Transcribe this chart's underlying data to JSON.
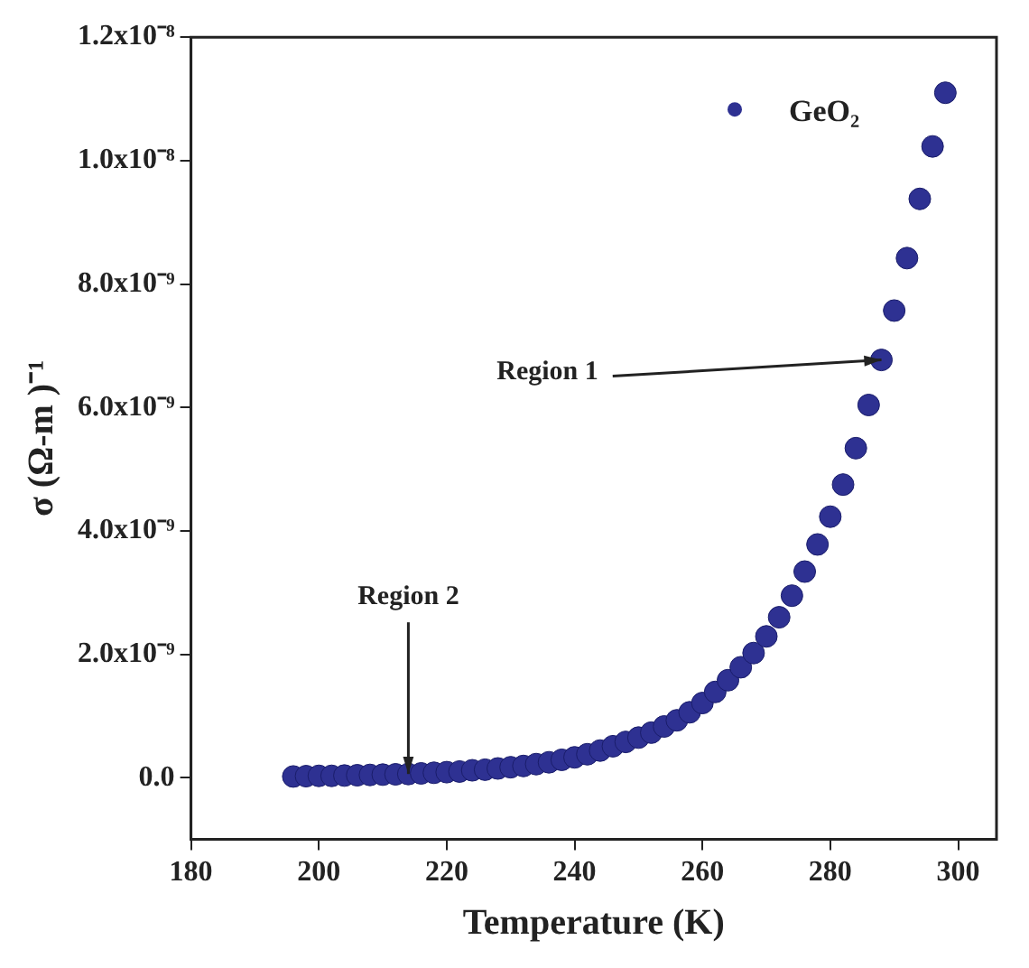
{
  "chart_data": {
    "type": "scatter",
    "xlabel": "Temperature (K)",
    "ylabel": "σ (Ω-m )⁻¹",
    "x": [
      196,
      198,
      200,
      202,
      204,
      206,
      208,
      210,
      212,
      214,
      216,
      218,
      220,
      222,
      224,
      226,
      228,
      230,
      232,
      234,
      236,
      238,
      240,
      242,
      244,
      246,
      248,
      250,
      252,
      254,
      256,
      258,
      260,
      262,
      264,
      266,
      268,
      270,
      272,
      274,
      276,
      278,
      280,
      282,
      284,
      286,
      288,
      290,
      292,
      294,
      296,
      298
    ],
    "series": [
      {
        "name": "GeO₂",
        "color": "#2e3192",
        "values": [
          2e-11,
          2.5e-11,
          3e-11,
          3e-11,
          3.5e-11,
          4e-11,
          4.5e-11,
          5e-11,
          5.5e-11,
          6e-11,
          7e-11,
          8e-11,
          9e-11,
          1e-10,
          1.2e-10,
          1.3e-10,
          1.5e-10,
          1.7e-10,
          1.9e-10,
          2.2e-10,
          2.5e-10,
          2.9e-10,
          3.3e-10,
          3.8e-10,
          4.4e-10,
          5.1e-10,
          5.8e-10,
          6.5e-10,
          7.3e-10,
          8.3e-10,
          9.3e-10,
          1.06e-09,
          1.21e-09,
          1.39e-09,
          1.58e-09,
          1.79e-09,
          2.02e-09,
          2.29e-09,
          2.6e-09,
          2.95e-09,
          3.34e-09,
          3.78e-09,
          4.23e-09,
          4.75e-09,
          5.34e-09,
          6.04e-09,
          6.77e-09,
          7.57e-09,
          8.42e-09,
          9.38e-09,
          1.023e-08,
          1.11e-08
        ]
      }
    ],
    "xlim": [
      180,
      306
    ],
    "xticks": [
      180,
      200,
      220,
      240,
      260,
      280,
      300
    ],
    "ylim": [
      -1e-09,
      1.2e-08
    ],
    "yticks": [
      {
        "value": 0,
        "label": "0.0"
      },
      {
        "value": 2e-09,
        "label": "2.0x10⁻⁹"
      },
      {
        "value": 4e-09,
        "label": "4.0x10⁻⁹"
      },
      {
        "value": 6e-09,
        "label": "6.0x10⁻⁹"
      },
      {
        "value": 8e-09,
        "label": "8.0x10⁻⁹"
      },
      {
        "value": 1e-08,
        "label": "1.0x10⁻⁸"
      },
      {
        "value": 1.2e-08,
        "label": "1.2x10⁻⁸"
      }
    ],
    "annotations": [
      {
        "text": "Region 1",
        "x": 288,
        "y": 6.77e-09
      },
      {
        "text": "Region 2",
        "x": 214,
        "y": 6e-11
      }
    ],
    "grid": false,
    "legend": "top right",
    "marker": "circle"
  }
}
